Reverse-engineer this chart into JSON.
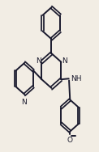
{
  "bg_color": "#f2ede4",
  "line_color": "#1a1a2e",
  "line_width": 1.4,
  "font_size": 6.5,
  "figsize": [
    1.22,
    1.88
  ],
  "dpi": 100,
  "xlim": [
    0,
    1
  ],
  "ylim": [
    0,
    1
  ]
}
